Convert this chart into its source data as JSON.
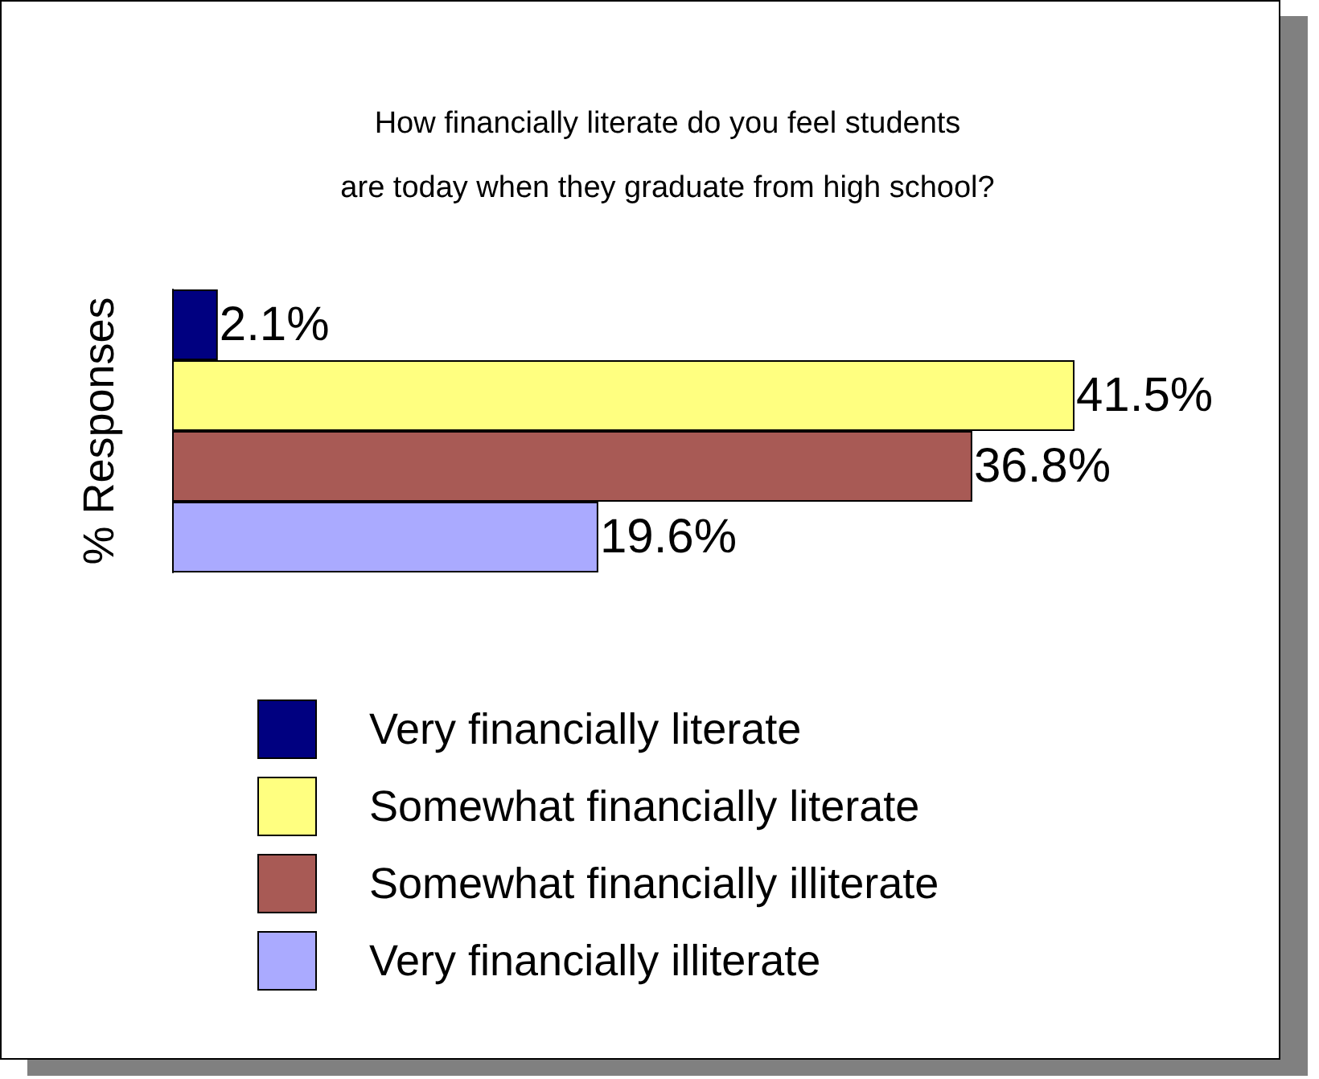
{
  "chart_data": {
    "type": "bar",
    "orientation": "horizontal",
    "title": "How financially literate do you feel students\nare today when they graduate from high school?",
    "ylabel": "% Responses",
    "categories": [
      null
    ],
    "legend": "bottom",
    "series": [
      {
        "name": "Very financially literate",
        "color": "#000080",
        "values": [
          2.1
        ],
        "value_labels": [
          "2.1%"
        ]
      },
      {
        "name": "Somewhat financially literate",
        "color": "#ffff80",
        "values": [
          41.5
        ],
        "value_labels": [
          "41.5%"
        ]
      },
      {
        "name": "Somewhat financially illiterate",
        "color": "#a85a55",
        "values": [
          36.8
        ],
        "value_labels": [
          "36.8%"
        ]
      },
      {
        "name": "Very financially illiterate",
        "color": "#aaaaff",
        "values": [
          19.6
        ],
        "value_labels": [
          "19.6%"
        ]
      }
    ]
  }
}
